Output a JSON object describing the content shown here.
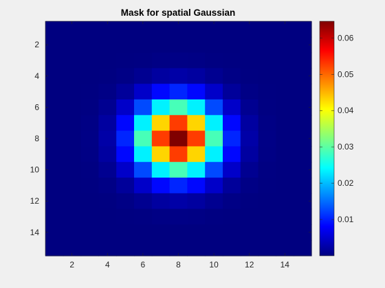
{
  "chart_data": {
    "type": "heatmap",
    "title": "Mask for spatial Gaussian",
    "xlabel": "",
    "ylabel": "",
    "rows": 15,
    "cols": 15,
    "center": [
      8,
      8
    ],
    "sigma": 1.57,
    "peak_value": 0.0646,
    "x_ticks": [
      2,
      4,
      6,
      8,
      10,
      12,
      14
    ],
    "y_ticks": [
      2,
      4,
      6,
      8,
      10,
      12,
      14
    ],
    "colorbar": {
      "colormap": "jet",
      "min": 0.0,
      "max": 0.0646,
      "ticks": [
        0.01,
        0.02,
        0.03,
        0.04,
        0.05,
        0.06
      ],
      "tick_labels": [
        "0.01",
        "0.02",
        "0.03",
        "0.04",
        "0.05",
        "0.06"
      ]
    },
    "grid": false,
    "legend": "none"
  }
}
